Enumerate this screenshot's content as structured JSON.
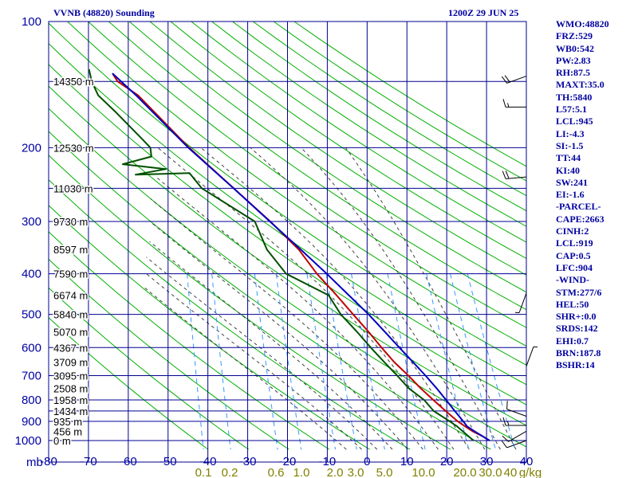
{
  "header": {
    "station": "VVNB (48820) Sounding",
    "time": "1200Z 29 JUN 25"
  },
  "stats": [
    "WMO:48820",
    "FRZ:529",
    "WB0:542",
    "PW:2.83",
    "RH:87.5",
    "MAXT:35.0",
    "TH:5840",
    "L57:5.1",
    "LCL:945",
    "LI:-4.3",
    "SI:-1.5",
    "TT:44",
    "KI:40",
    "SW:241",
    "EI:-1.6",
    "-PARCEL-",
    "CAPE:2663",
    "CINH:2",
    "LCL:919",
    "CAP:0.5",
    "LFC:904",
    "-WIND-",
    "STM:277/6",
    "HEL:50",
    "SHR+:0.0",
    "SRDS:142",
    "EHI:0.7",
    "BRN:187.8",
    "BSHR:14"
  ],
  "colors": {
    "grid": "#000090",
    "dry_adiabat": "#00b000",
    "moist_adiabat": "#404040",
    "mixing_ratio": "#3399ff",
    "temperature": "#c00000",
    "dewpoint": "#005000",
    "parcel": "#0000c0",
    "axis_text": "#0000a0",
    "mixing_text": "#808000",
    "wind_barb": "#000000"
  },
  "chart_data": {
    "type": "line",
    "chart_kind": "skew-T log-P sounding",
    "xlabel": "",
    "ylabel": "mb",
    "x_ticks": [
      -80,
      -70,
      -60,
      -50,
      -40,
      -30,
      -20,
      -10,
      0,
      10,
      20,
      30,
      40
    ],
    "x_tick_labels": [
      "-80",
      "-70",
      "-60",
      "-50",
      "-40",
      "-30",
      "-20",
      "-10",
      "0",
      "10",
      "20",
      "30",
      "40"
    ],
    "xlim": [
      -80,
      40
    ],
    "y_ticks": [
      100,
      200,
      300,
      400,
      500,
      600,
      700,
      800,
      900,
      1000
    ],
    "ylim": [
      100,
      1050
    ],
    "y_scale": "log",
    "height_labels": [
      {
        "p": 139,
        "text": "14350 m"
      },
      {
        "p": 200,
        "text": "12530 m"
      },
      {
        "p": 250,
        "text": "11030 m"
      },
      {
        "p": 300,
        "text": "9730 m"
      },
      {
        "p": 350,
        "text": "8597 m"
      },
      {
        "p": 400,
        "text": "7590 m"
      },
      {
        "p": 450,
        "text": "6674 m"
      },
      {
        "p": 500,
        "text": "5840 m"
      },
      {
        "p": 550,
        "text": "5070 m"
      },
      {
        "p": 600,
        "text": "4367 m"
      },
      {
        "p": 650,
        "text": "3709 m"
      },
      {
        "p": 700,
        "text": "3095 m"
      },
      {
        "p": 750,
        "text": "2508 m"
      },
      {
        "p": 800,
        "text": "1958 m"
      },
      {
        "p": 850,
        "text": "1434 m"
      },
      {
        "p": 900,
        "text": "935 m"
      },
      {
        "p": 950,
        "text": "456 m"
      },
      {
        "p": 1000,
        "text": "0 m"
      }
    ],
    "mixing_ratio_labels": [
      "0.1",
      "0.2",
      "0.6",
      "1.0",
      "2.0",
      "3.0",
      "5.0",
      "10.0",
      "20.0",
      "30.0",
      "40",
      "g/kg"
    ],
    "grid": true,
    "series": [
      {
        "key": "temperature",
        "points": [
          [
            1000,
            30.5
          ],
          [
            975,
            28.5
          ],
          [
            950,
            26.0
          ],
          [
            925,
            24.0
          ],
          [
            900,
            22.0
          ],
          [
            850,
            18.7
          ],
          [
            800,
            15.3
          ],
          [
            750,
            11.8
          ],
          [
            700,
            8.4
          ],
          [
            650,
            4.5
          ],
          [
            600,
            0.9
          ],
          [
            550,
            -2.8
          ],
          [
            500,
            -7.1
          ],
          [
            450,
            -11.8
          ],
          [
            400,
            -17.3
          ],
          [
            350,
            -22.5
          ],
          [
            300,
            -30.4
          ],
          [
            250,
            -40.5
          ],
          [
            200,
            -52.8
          ],
          [
            150,
            -67.0
          ],
          [
            139,
            -72.5
          ],
          [
            133,
            -74.0
          ]
        ]
      },
      {
        "key": "dewpoint",
        "points": [
          [
            1000,
            26.5
          ],
          [
            975,
            25.0
          ],
          [
            950,
            23.5
          ],
          [
            925,
            22.0
          ],
          [
            900,
            20.0
          ],
          [
            850,
            15.7
          ],
          [
            800,
            13.0
          ],
          [
            750,
            8.8
          ],
          [
            700,
            5.6
          ],
          [
            650,
            2.0
          ],
          [
            600,
            -1.8
          ],
          [
            550,
            -5.7
          ],
          [
            500,
            -10.2
          ],
          [
            450,
            -13.8
          ],
          [
            400,
            -25.0
          ],
          [
            350,
            -30.5
          ],
          [
            300,
            -34.3
          ],
          [
            250,
            -48.5
          ],
          [
            230,
            -52.0
          ],
          [
            232,
            -65.5
          ],
          [
            225,
            -58.0
          ],
          [
            219,
            -69.0
          ],
          [
            210,
            -62.0
          ],
          [
            200,
            -62.5
          ],
          [
            190,
            -65.0
          ],
          [
            165,
            -72.0
          ],
          [
            150,
            -77.0
          ],
          [
            139,
            -79.0
          ],
          [
            130,
            -80.0
          ]
        ]
      },
      {
        "key": "parcel",
        "points": [
          [
            1000,
            30.5
          ],
          [
            950,
            26.5
          ],
          [
            925,
            24.5
          ],
          [
            900,
            23.4
          ],
          [
            850,
            21.0
          ],
          [
            800,
            18.5
          ],
          [
            750,
            15.8
          ],
          [
            700,
            12.7
          ],
          [
            650,
            9.2
          ],
          [
            600,
            5.4
          ],
          [
            550,
            1.3
          ],
          [
            500,
            -3.2
          ],
          [
            450,
            -8.7
          ],
          [
            400,
            -14.8
          ],
          [
            350,
            -22.0
          ],
          [
            300,
            -30.5
          ],
          [
            250,
            -40.5
          ],
          [
            200,
            -53.0
          ],
          [
            150,
            -67.5
          ],
          [
            133,
            -74.0
          ]
        ]
      }
    ],
    "wind_barbs": [
      {
        "p": 135,
        "dir": 250,
        "kt": 20
      },
      {
        "p": 160,
        "dir": 270,
        "kt": 15
      },
      {
        "p": 235,
        "dir": 265,
        "kt": 20
      },
      {
        "p": 445,
        "dir": 200,
        "kt": 5
      },
      {
        "p": 665,
        "dir": 20,
        "kt": 5
      },
      {
        "p": 875,
        "dir": 290,
        "kt": 10
      },
      {
        "p": 920,
        "dir": 270,
        "kt": 15
      },
      {
        "p": 950,
        "dir": 240,
        "kt": 10
      },
      {
        "p": 1000,
        "dir": 250,
        "kt": 10
      }
    ]
  }
}
